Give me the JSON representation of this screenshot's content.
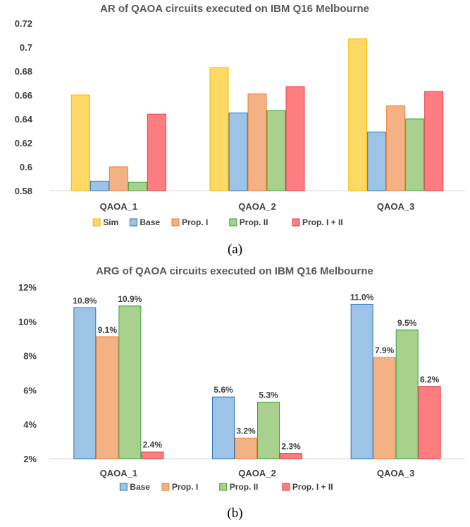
{
  "chart_data": [
    {
      "type": "bar",
      "title": "AR of QAOA circuits executed on IBM Q16 Melbourne",
      "categories": [
        "QAOA_1",
        "QAOA_2",
        "QAOA_3"
      ],
      "series": [
        {
          "name": "Sim",
          "color": "#FFD966",
          "stroke": "#F5B800",
          "values": [
            0.66,
            0.683,
            0.707
          ]
        },
        {
          "name": "Base",
          "color": "#9DC3E6",
          "stroke": "#2E75B6",
          "values": [
            0.588,
            0.645,
            0.629
          ]
        },
        {
          "name": "Prop. I",
          "color": "#F4B183",
          "stroke": "#ED7D31",
          "values": [
            0.6,
            0.661,
            0.651
          ]
        },
        {
          "name": "Prop. II",
          "color": "#A9D18E",
          "stroke": "#3BA33B",
          "values": [
            0.587,
            0.647,
            0.64
          ]
        },
        {
          "name": "Prop. I + II",
          "color": "#FF7C80",
          "stroke": "#E0404A",
          "values": [
            0.644,
            0.667,
            0.663
          ]
        }
      ],
      "ylim": [
        0.58,
        0.72
      ],
      "yticks": [
        0.58,
        0.6,
        0.62,
        0.64,
        0.66,
        0.68,
        0.7,
        0.72
      ],
      "ytick_labels": [
        "0.58",
        "0.6",
        "0.62",
        "0.64",
        "0.66",
        "0.68",
        "0.7",
        "0.72"
      ],
      "show_data_labels": false,
      "legend": "bottom",
      "grid": false,
      "caption": "(a)"
    },
    {
      "type": "bar",
      "title": "ARG of QAOA circuits executed on IBM Q16 Melbourne",
      "categories": [
        "QAOA_1",
        "QAOA_2",
        "QAOA_3"
      ],
      "series": [
        {
          "name": "Base",
          "color": "#9DC3E6",
          "stroke": "#2E75B6",
          "values": [
            10.8,
            5.6,
            11.0
          ],
          "labels": [
            "10.8%",
            "5.6%",
            "11.0%"
          ]
        },
        {
          "name": "Prop. I",
          "color": "#F4B183",
          "stroke": "#ED7D31",
          "values": [
            9.1,
            3.2,
            7.9
          ],
          "labels": [
            "9.1%",
            "3.2%",
            "7.9%"
          ]
        },
        {
          "name": "Prop. II",
          "color": "#A9D18E",
          "stroke": "#3BA33B",
          "values": [
            10.9,
            5.3,
            9.5
          ],
          "labels": [
            "10.9%",
            "5.3%",
            "9.5%"
          ]
        },
        {
          "name": "Prop. I + II",
          "color": "#FF7C80",
          "stroke": "#E0404A",
          "values": [
            2.4,
            2.3,
            6.2
          ],
          "labels": [
            "2.4%",
            "2.3%",
            "6.2%"
          ]
        }
      ],
      "ylim": [
        2,
        12
      ],
      "yticks": [
        2,
        4,
        6,
        8,
        10,
        12
      ],
      "ytick_labels": [
        "2%",
        "4%",
        "6%",
        "8%",
        "10%",
        "12%"
      ],
      "show_data_labels": true,
      "legend": "bottom",
      "grid": false,
      "caption": "(b)"
    }
  ]
}
